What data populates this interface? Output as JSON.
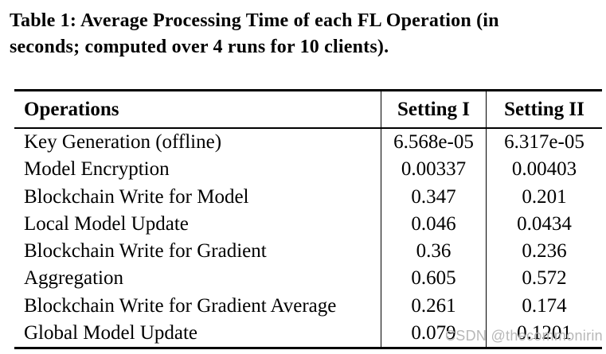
{
  "caption": {
    "line1": "Table 1: Average Processing Time of each FL Operation (in",
    "line2": "seconds; computed over 4 runs for 10 clients)."
  },
  "table": {
    "headers": {
      "operations": "Operations",
      "setting1": "Setting I",
      "setting2": "Setting II"
    },
    "rows": [
      {
        "op": "Key Generation (offline)",
        "s1": "6.568e-05",
        "s2": "6.317e-05"
      },
      {
        "op": "Model Encryption",
        "s1": "0.00337",
        "s2": "0.00403"
      },
      {
        "op": "Blockchain Write for Model",
        "s1": "0.347",
        "s2": "0.201"
      },
      {
        "op": "Local Model Update",
        "s1": "0.046",
        "s2": "0.0434"
      },
      {
        "op": "Blockchain Write for Gradient",
        "s1": "0.36",
        "s2": "0.236"
      },
      {
        "op": "Aggregation",
        "s1": "0.605",
        "s2": "0.572"
      },
      {
        "op": "Blockchain Write for Gradient Average",
        "s1": "0.261",
        "s2": "0.174"
      },
      {
        "op": "Global Model Update",
        "s1": "0.079",
        "s2": "0.1201"
      }
    ]
  },
  "watermark": "CSDN @thecommonirin",
  "colors": {
    "text": "#000000",
    "rule": "#000000",
    "watermark_gray": "#b8b8b8",
    "background": "#ffffff"
  }
}
